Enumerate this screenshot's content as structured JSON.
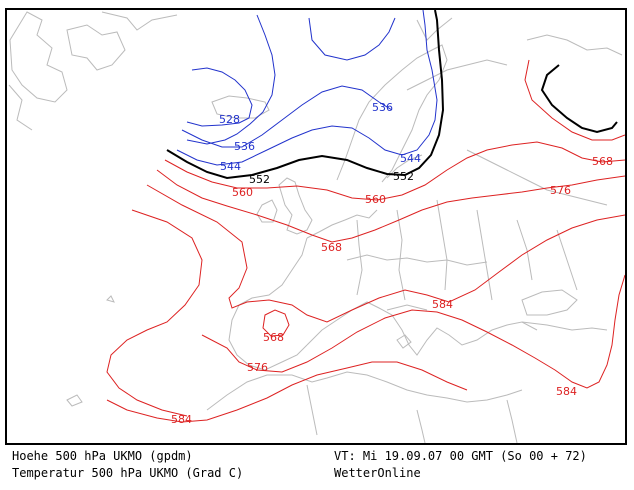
{
  "footer": {
    "left_line1": "Hoehe 500 hPa UKMO (gpdm)",
    "left_line2": "Temperatur 500 hPa UKMO (Grad C)",
    "right_line1": "VT: Mi 19.09.07 00 GMT (So 00 + 72)",
    "right_line2": "WetterOnline"
  },
  "colors": {
    "height_lines": "#2233cc",
    "highlight_line": "#000000",
    "temperature_lines": "#dd2222",
    "coastline": "#bbbbbb"
  },
  "contour_labels": {
    "l528": "528",
    "l536a": "536",
    "l536b": "536",
    "l544a": "544",
    "l544b": "544",
    "l552a": "552",
    "l552b": "552",
    "l560": "560",
    "l568a": "568",
    "l568b": "568",
    "l568c": "568",
    "l576a": "576",
    "l576b": "576",
    "l584a": "584",
    "l584b": "584",
    "l584c": "584"
  }
}
